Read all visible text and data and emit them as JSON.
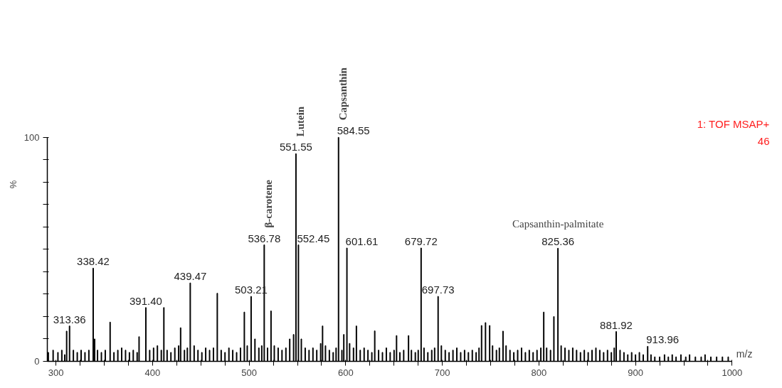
{
  "chart_data": {
    "type": "bar",
    "xlabel": "m/z",
    "ylabel": "%",
    "xlim": [
      291,
      1000
    ],
    "ylim": [
      0,
      100
    ],
    "xticks": [
      300,
      {
        "value": 325,
        "label": null
      },
      {
        "value": 350,
        "label": null
      },
      {
        "value": 375,
        "label": null
      },
      400,
      {
        "value": 425,
        "label": null
      },
      {
        "value": 450,
        "label": null
      },
      {
        "value": 475,
        "label": null
      },
      500,
      {
        "value": 525,
        "label": null
      },
      {
        "value": 550,
        "label": null
      },
      {
        "value": 575,
        "label": null
      },
      600,
      {
        "value": 625,
        "label": null
      },
      {
        "value": 650,
        "label": null
      },
      {
        "value": 675,
        "label": null
      },
      700,
      {
        "value": 725,
        "label": null
      },
      {
        "value": 750,
        "label": null
      },
      {
        "value": 775,
        "label": null
      },
      800,
      {
        "value": 825,
        "label": null
      },
      {
        "value": 850,
        "label": null
      },
      {
        "value": 875,
        "label": null
      },
      900,
      {
        "value": 925,
        "label": null
      },
      {
        "value": 950,
        "label": null
      },
      {
        "value": 975,
        "label": null
      },
      1000
    ],
    "yticks": [
      0,
      {
        "value": 10,
        "label": null
      },
      {
        "value": 20,
        "label": null
      },
      {
        "value": 30,
        "label": null
      },
      {
        "value": 40,
        "label": null
      },
      {
        "value": 50,
        "label": null
      },
      {
        "value": 60,
        "label": null
      },
      {
        "value": 70,
        "label": null
      },
      {
        "value": 80,
        "label": null
      },
      {
        "value": 90,
        "label": null
      },
      100
    ],
    "grid": false,
    "x": [
      292,
      297,
      302,
      306,
      309,
      311,
      314,
      318,
      322,
      326,
      330,
      334,
      338.5,
      340,
      343,
      347,
      351,
      356,
      360,
      364,
      368,
      372,
      376,
      380,
      384,
      386,
      393,
      397,
      401,
      405,
      409,
      411.7,
      415,
      419,
      423,
      427,
      429,
      433,
      436,
      439,
      443,
      447,
      451,
      455,
      459,
      463,
      467,
      471,
      475,
      479,
      483,
      487,
      491,
      495,
      498,
      502,
      506,
      510,
      513,
      515.6,
      519,
      522.6,
      526,
      530,
      534,
      538,
      542,
      546,
      548.4,
      551,
      554,
      558,
      562,
      566,
      570,
      574,
      576,
      579,
      583,
      587,
      590,
      592.5,
      596,
      598,
      601.2,
      604,
      608,
      611,
      615,
      619,
      623,
      627,
      630,
      634,
      638,
      642,
      646,
      650,
      652.6,
      656,
      660,
      665,
      668,
      672,
      675,
      678,
      681,
      685,
      689,
      692,
      695.6,
      699,
      703,
      707,
      711,
      715,
      719,
      723,
      727,
      731,
      735,
      738,
      740.6,
      744.7,
      749,
      752,
      756,
      759,
      762.8,
      766,
      770,
      774,
      778,
      782,
      786,
      790,
      794,
      798,
      802,
      805,
      808,
      812,
      815.5,
      819.7,
      823,
      827,
      831,
      835,
      839,
      843,
      847,
      851,
      855,
      859,
      863,
      867,
      871,
      875,
      878,
      880,
      884,
      888,
      892,
      896,
      900,
      904,
      908,
      912.6,
      916,
      920,
      925,
      930,
      934,
      938,
      942,
      947,
      952,
      956,
      962,
      968,
      972,
      978,
      984,
      990,
      996
    ],
    "series": [
      {
        "color": "#000000",
        "values": [
          4,
          5,
          4,
          5,
          3,
          13.5,
          15.8,
          5,
          4,
          5,
          4,
          5,
          41.6,
          10,
          5,
          4,
          5,
          17.5,
          4,
          5,
          6,
          5,
          4,
          5,
          4,
          11,
          24,
          5,
          6,
          7,
          5,
          24,
          5,
          4,
          6,
          7,
          15,
          5,
          6,
          35,
          7,
          5,
          4,
          6,
          5,
          6,
          30.4,
          5,
          4,
          6,
          5,
          4,
          6,
          22,
          7,
          29,
          10,
          6,
          7,
          52,
          6,
          22.5,
          7,
          6,
          5,
          6,
          10,
          12,
          92.7,
          52,
          10,
          6,
          5,
          6,
          5,
          8,
          15.8,
          7,
          5,
          4,
          6,
          100,
          5,
          12,
          50.6,
          8,
          6,
          15.8,
          5,
          6,
          5,
          4,
          13.6,
          5,
          4,
          6,
          4,
          5,
          11.5,
          4,
          5,
          11.5,
          5,
          4,
          5,
          50.6,
          6,
          4,
          5,
          6,
          29,
          7,
          5,
          4,
          5,
          6,
          4,
          5,
          4,
          5,
          4,
          6,
          16,
          17.3,
          16,
          7,
          5,
          6,
          13.5,
          7,
          5,
          4,
          5,
          6,
          4,
          5,
          4,
          5,
          6,
          22,
          6,
          5,
          20,
          50.5,
          7,
          6,
          5,
          6,
          5,
          4,
          5,
          4,
          5,
          6,
          5,
          4,
          5,
          4,
          6,
          13.3,
          5,
          4,
          3,
          4,
          3,
          4,
          3,
          6.7,
          3,
          2,
          2,
          3,
          2,
          3,
          2,
          3,
          2,
          3,
          2,
          2,
          3,
          2,
          2,
          2,
          2
        ]
      }
    ],
    "annotations": [
      {
        "text": "313.36",
        "x": 314,
        "y": 15.8
      },
      {
        "text": "338.42",
        "x": 338.5,
        "y": 41.6
      },
      {
        "text": "391.40",
        "x": 393,
        "y": 24
      },
      {
        "text": "439.47",
        "x": 439,
        "y": 35
      },
      {
        "text": "503.21",
        "x": 502,
        "y": 29
      },
      {
        "text": "536.78",
        "x": 515.6,
        "y": 52
      },
      {
        "text": "551.55",
        "x": 548.4,
        "y": 92.7
      },
      {
        "text": "552.45",
        "x": 551,
        "y": 52
      },
      {
        "text": "584.55",
        "x": 592.5,
        "y": 100
      },
      {
        "text": "601.61",
        "x": 601.2,
        "y": 50.6
      },
      {
        "text": "679.72",
        "x": 678,
        "y": 50.6
      },
      {
        "text": "697.73",
        "x": 695.6,
        "y": 29
      },
      {
        "text": "825.36",
        "x": 819.7,
        "y": 50.5
      },
      {
        "text": "881.92",
        "x": 880,
        "y": 13.3
      },
      {
        "text": "913.96",
        "x": 912.6,
        "y": 6.7
      },
      {
        "text": "β-carotene",
        "x": 515.6,
        "y": 52
      },
      {
        "text": "Lutein",
        "x": 548.4,
        "y": 92.7
      },
      {
        "text": "Capsanthin",
        "x": 592.5,
        "y": 100
      },
      {
        "text": "Capsanthin-palmitate",
        "x": 819.7,
        "y": 50.5
      },
      "1: TOF MSAP+",
      "46"
    ]
  }
}
